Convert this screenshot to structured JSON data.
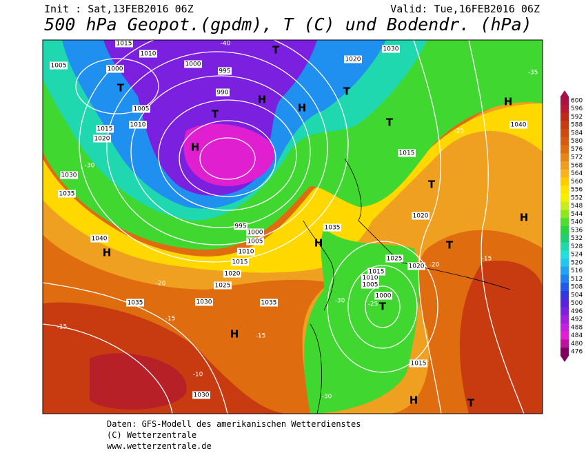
{
  "header": {
    "init": "Init : Sat,13FEB2016 06Z",
    "valid": "Valid: Tue,16FEB2016 06Z",
    "title": "500 hPa Geopot.(gpdm), T (C) und Bodendr. (hPa)"
  },
  "legend": {
    "levels": [
      600,
      596,
      592,
      588,
      584,
      580,
      576,
      572,
      568,
      564,
      560,
      556,
      552,
      548,
      544,
      540,
      536,
      532,
      528,
      524,
      520,
      516,
      512,
      508,
      504,
      500,
      496,
      492,
      488,
      484,
      480,
      476
    ],
    "colors": [
      "#a8104a",
      "#b81830",
      "#c02818",
      "#c83a10",
      "#d04a10",
      "#d85a10",
      "#e06c10",
      "#e88418",
      "#f09c20",
      "#f8b420",
      "#ffcc00",
      "#ffe400",
      "#f4f000",
      "#c8ec20",
      "#90e420",
      "#50dc30",
      "#28d440",
      "#20d070",
      "#20d8a8",
      "#20e0d8",
      "#20c8f0",
      "#20a4f0",
      "#2080f0",
      "#2458e8",
      "#3434e0",
      "#5424e0",
      "#7c20e0",
      "#a020e0",
      "#c420e0",
      "#e020d0",
      "#c010a0",
      "#800060"
    ]
  },
  "map_labels": [
    "1015",
    "1010",
    "1005",
    "1000",
    "1000",
    "995",
    "990",
    "T",
    "H",
    "H",
    "T",
    "1005",
    "1015",
    "1010",
    "1020",
    "1030",
    "1035",
    "1040",
    "H",
    "1035",
    "1030",
    "1035",
    "H",
    "1030",
    "T",
    "1000",
    "H",
    "T",
    "1015",
    "1040",
    "H",
    "T",
    "T",
    "H",
    "1030",
    "1020",
    "T",
    "T",
    "1015",
    "1020",
    "1025",
    "1010",
    "1005",
    "1015",
    "1020",
    "H",
    "1035",
    "1025",
    "1020",
    "1015",
    "1010",
    "1005",
    "1000",
    "995",
    "-40",
    "-35",
    "-30",
    "-25",
    "-20",
    "-15",
    "-15",
    "-10",
    "-30",
    "-30",
    "-25",
    "-15",
    "-20",
    "-15",
    "T",
    "H"
  ],
  "footer": {
    "line1": "Daten: GFS-Modell des amerikanischen Wetterdienstes",
    "line2": "(C) Wetterzentrale",
    "line3": "www.wetterzentrale.de"
  }
}
